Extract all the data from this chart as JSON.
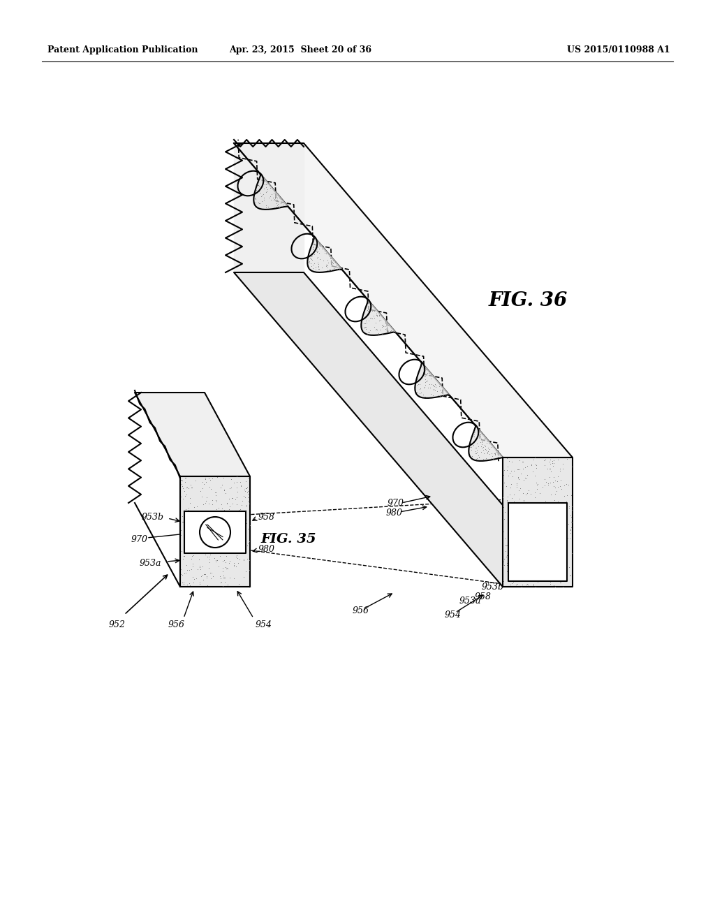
{
  "background_color": "#ffffff",
  "header_left": "Patent Application Publication",
  "header_center": "Apr. 23, 2015  Sheet 20 of 36",
  "header_right": "US 2015/0110988 A1",
  "fig35_label": "FIG. 35",
  "fig36_label": "FIG. 36"
}
